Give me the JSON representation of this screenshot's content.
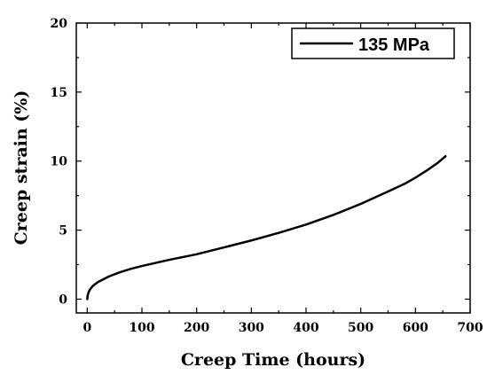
{
  "chart_data": {
    "type": "line",
    "xlabel": "Creep Time (hours)",
    "ylabel": "Creep strain (%)",
    "xlim": [
      -20,
      700
    ],
    "ylim": [
      -1,
      20
    ],
    "x_ticks": [
      0,
      100,
      200,
      300,
      400,
      500,
      600,
      700
    ],
    "y_ticks": [
      0,
      5,
      10,
      15,
      20
    ],
    "grid": false,
    "legend_position": "top-right",
    "series": [
      {
        "name": "135 MPa",
        "color": "#000000",
        "x": [
          0,
          1,
          3,
          6,
          10,
          20,
          40,
          60,
          80,
          100,
          150,
          200,
          250,
          300,
          350,
          400,
          450,
          500,
          550,
          580,
          600,
          620,
          640,
          655
        ],
        "y": [
          0.0,
          0.3,
          0.55,
          0.75,
          0.95,
          1.25,
          1.65,
          1.95,
          2.2,
          2.4,
          2.85,
          3.25,
          3.75,
          4.25,
          4.8,
          5.4,
          6.1,
          6.9,
          7.8,
          8.35,
          8.8,
          9.3,
          9.85,
          10.35
        ]
      }
    ]
  }
}
